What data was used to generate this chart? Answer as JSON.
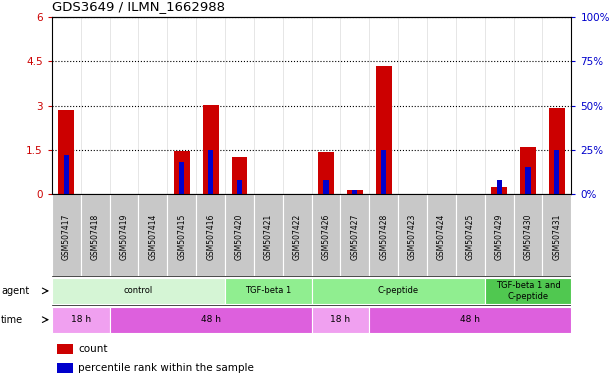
{
  "title": "GDS3649 / ILMN_1662988",
  "samples": [
    "GSM507417",
    "GSM507418",
    "GSM507419",
    "GSM507414",
    "GSM507415",
    "GSM507416",
    "GSM507420",
    "GSM507421",
    "GSM507422",
    "GSM507426",
    "GSM507427",
    "GSM507428",
    "GSM507423",
    "GSM507424",
    "GSM507425",
    "GSM507429",
    "GSM507430",
    "GSM507431"
  ],
  "count_values": [
    2.85,
    0.0,
    0.0,
    0.0,
    1.45,
    3.02,
    1.25,
    0.0,
    0.0,
    1.42,
    0.12,
    4.35,
    0.0,
    0.0,
    0.0,
    0.25,
    1.58,
    2.93
  ],
  "percentile_values": [
    22,
    0,
    0,
    0,
    18,
    25,
    8,
    0,
    0,
    8,
    2,
    25,
    0,
    0,
    0,
    8,
    15,
    25
  ],
  "ylim_left": [
    0,
    6
  ],
  "ylim_right": [
    0,
    100
  ],
  "yticks_left": [
    0,
    1.5,
    3.0,
    4.5,
    6.0
  ],
  "yticks_right": [
    0,
    25,
    50,
    75,
    100
  ],
  "ytick_labels_left": [
    "0",
    "1.5",
    "3",
    "4.5",
    "6"
  ],
  "ytick_labels_right": [
    "0%",
    "25%",
    "50%",
    "75%",
    "100%"
  ],
  "agent_groups": [
    {
      "label": "control",
      "start": 0,
      "end": 6,
      "color": "#d5f5d5"
    },
    {
      "label": "TGF-beta 1",
      "start": 6,
      "end": 9,
      "color": "#90ee90"
    },
    {
      "label": "C-peptide",
      "start": 9,
      "end": 15,
      "color": "#90ee90"
    },
    {
      "label": "TGF-beta 1 and\nC-peptide",
      "start": 15,
      "end": 18,
      "color": "#50c850"
    }
  ],
  "time_groups": [
    {
      "label": "18 h",
      "start": 0,
      "end": 2,
      "color": "#f0a0f0"
    },
    {
      "label": "48 h",
      "start": 2,
      "end": 9,
      "color": "#dd60dd"
    },
    {
      "label": "18 h",
      "start": 9,
      "end": 11,
      "color": "#f0a0f0"
    },
    {
      "label": "48 h",
      "start": 11,
      "end": 18,
      "color": "#dd60dd"
    }
  ],
  "bar_color_count": "#cc0000",
  "bar_color_percentile": "#0000cc",
  "background_color": "#ffffff"
}
